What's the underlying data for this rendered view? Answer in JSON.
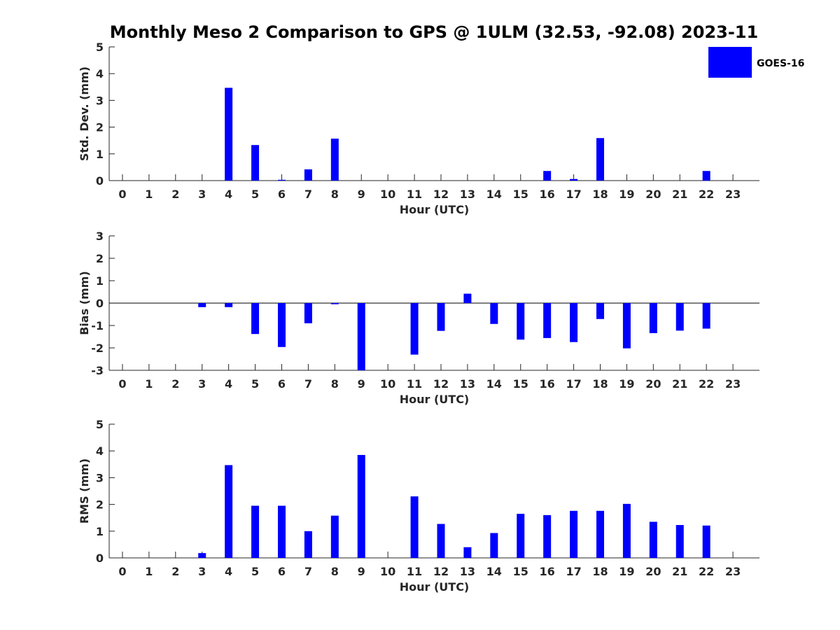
{
  "chart_data": {
    "title": "Monthly Meso 2 Comparison to GPS @ 1ULM (32.53, -92.08) 2023-11",
    "legend": {
      "entries": [
        "GOES-16"
      ],
      "placement": "top-right"
    },
    "series_color": "#0000ff",
    "panels": [
      {
        "type": "bar",
        "ylabel": "Std. Dev. (mm)",
        "xlabel": "Hour (UTC)",
        "ylim": [
          0,
          5
        ],
        "yticks": [
          "0",
          "1",
          "2",
          "3",
          "4",
          "5"
        ],
        "categories": [
          "0",
          "1",
          "2",
          "3",
          "4",
          "5",
          "6",
          "7",
          "8",
          "9",
          "10",
          "11",
          "12",
          "13",
          "14",
          "15",
          "16",
          "17",
          "18",
          "19",
          "20",
          "21",
          "22",
          "23"
        ],
        "series": [
          {
            "values": [
              null,
              null,
              null,
              null,
              3.47,
              1.33,
              0.03,
              0.42,
              1.57,
              null,
              null,
              null,
              null,
              null,
              null,
              null,
              0.36,
              0.06,
              1.59,
              null,
              null,
              null,
              0.36,
              null
            ]
          }
        ]
      },
      {
        "type": "bar",
        "ylabel": "Bias (mm)",
        "xlabel": "Hour (UTC)",
        "ylim": [
          -3,
          3
        ],
        "yticks": [
          "-3",
          "-2",
          "-1",
          "0",
          "1",
          "2",
          "3"
        ],
        "categories": [
          "0",
          "1",
          "2",
          "3",
          "4",
          "5",
          "6",
          "7",
          "8",
          "9",
          "10",
          "11",
          "12",
          "13",
          "14",
          "15",
          "16",
          "17",
          "18",
          "19",
          "20",
          "21",
          "22",
          "23"
        ],
        "series": [
          {
            "values": [
              null,
              null,
              null,
              -0.18,
              -0.18,
              -1.38,
              -1.96,
              -0.9,
              -0.05,
              -3.0,
              null,
              -2.3,
              -1.24,
              0.42,
              -0.93,
              -1.63,
              -1.56,
              -1.74,
              -0.71,
              -2.02,
              -1.34,
              -1.23,
              -1.14,
              null
            ]
          }
        ]
      },
      {
        "type": "bar",
        "ylabel": "RMS (mm)",
        "xlabel": "Hour (UTC)",
        "ylim": [
          0,
          5
        ],
        "yticks": [
          "0",
          "1",
          "2",
          "3",
          "4",
          "5"
        ],
        "categories": [
          "0",
          "1",
          "2",
          "3",
          "4",
          "5",
          "6",
          "7",
          "8",
          "9",
          "10",
          "11",
          "12",
          "13",
          "14",
          "15",
          "16",
          "17",
          "18",
          "19",
          "20",
          "21",
          "22",
          "23"
        ],
        "series": [
          {
            "values": [
              null,
              null,
              null,
              0.18,
              3.47,
              1.95,
              1.95,
              1.0,
              1.58,
              3.85,
              null,
              2.3,
              1.27,
              0.4,
              0.93,
              1.65,
              1.6,
              1.76,
              1.76,
              2.02,
              1.35,
              1.23,
              1.21,
              null
            ]
          }
        ]
      }
    ]
  }
}
